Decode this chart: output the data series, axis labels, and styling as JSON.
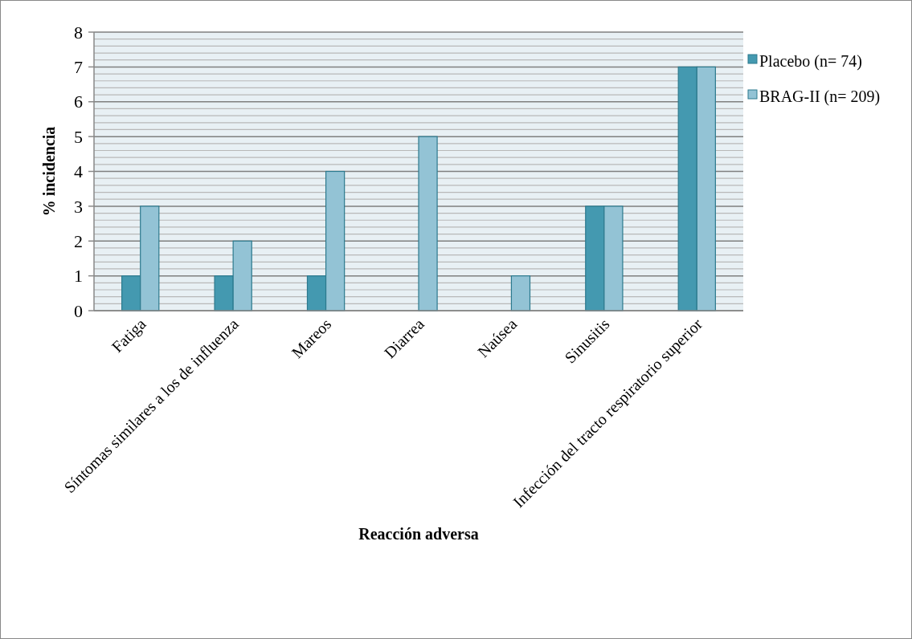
{
  "chart_data": {
    "type": "bar",
    "xlabel": "Reacción adversa",
    "ylabel": "% incidencia",
    "categories": [
      "Fatiga",
      "Síntomas similares a los de influenza",
      "Mareos",
      "Diarrea",
      "Naúsea",
      "Sinusitis",
      "Infección del tracto respiratorio superior"
    ],
    "series": [
      {
        "name": "Placebo (n= 74)",
        "color": "#4499b0",
        "values": [
          1,
          1,
          1,
          0,
          0,
          3,
          7
        ]
      },
      {
        "name": "BRAG-II (n= 209)",
        "color": "#93c3d5",
        "values": [
          3,
          2,
          4,
          5,
          1,
          3,
          7
        ]
      }
    ],
    "ylim": [
      0,
      8
    ],
    "yticks": [
      0,
      1,
      2,
      3,
      4,
      5,
      6,
      7,
      8
    ],
    "grid": "y",
    "legend": "right"
  }
}
